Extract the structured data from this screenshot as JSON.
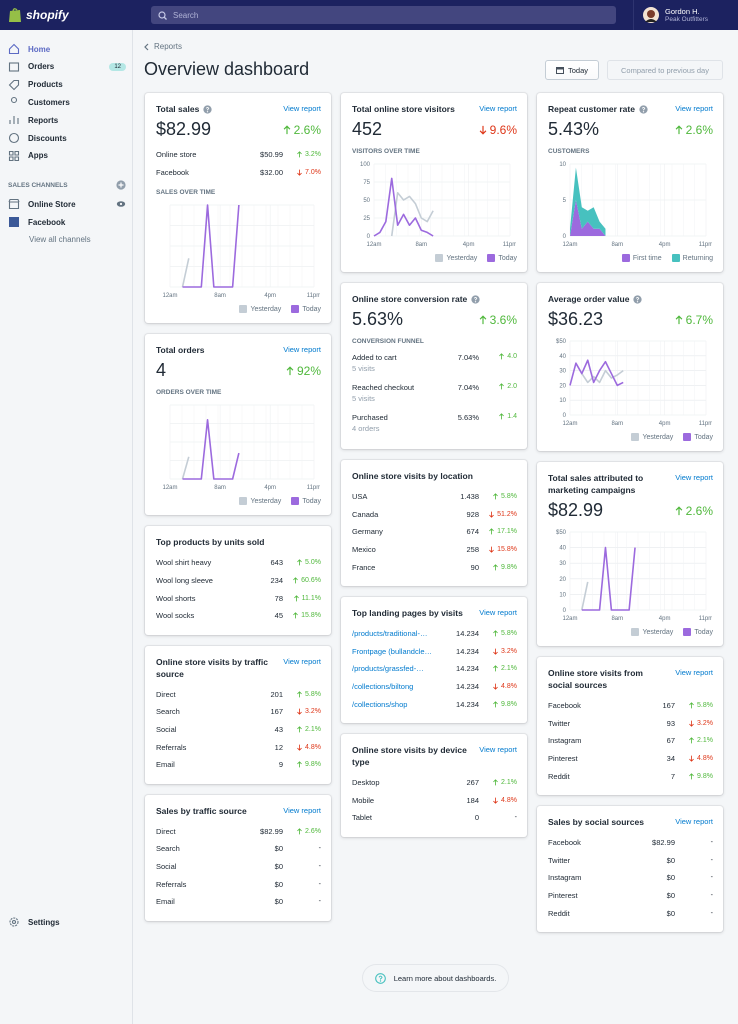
{
  "topbar": {
    "brand": "shopify",
    "search": "Search",
    "user": {
      "name": "Gordon H.",
      "store": "Peak Outfitters"
    }
  },
  "sidebar": {
    "nav": [
      {
        "label": "Home",
        "active": true
      },
      {
        "label": "Orders",
        "badge": 12
      },
      {
        "label": "Products"
      },
      {
        "label": "Customers"
      },
      {
        "label": "Reports"
      },
      {
        "label": "Discounts"
      },
      {
        "label": "Apps"
      }
    ],
    "section": "SALES CHANNELS",
    "channels": [
      "Online Store",
      "Facebook"
    ],
    "view_all": "View all channels",
    "settings": "Settings"
  },
  "header": {
    "breadcrumb": "Reports",
    "title": "Overview dashboard",
    "date_button": "Today",
    "compare_button": "Compared to previous day"
  },
  "columns": [
    [
      {
        "title": "Total sales",
        "info": true,
        "link": "View report",
        "value": "$82.99",
        "change": "2.6%",
        "trend": "up",
        "rows": [
          {
            "label": "Online store",
            "value": "$50.99",
            "change": "3.2%",
            "trend": "up"
          },
          {
            "label": "Facebook",
            "value": "$32.00",
            "change": "7.0%",
            "trend": "down"
          }
        ],
        "subheading": "SALES OVER TIME",
        "chart": {
          "type": "line",
          "x": [
            2,
            3,
            4,
            5,
            6,
            7,
            8,
            9,
            10,
            11
          ],
          "xlim": [
            0,
            23
          ],
          "xticks": [
            {
              "value": 0,
              "label": "12am"
            },
            {
              "value": 8,
              "label": "8am"
            },
            {
              "value": 16,
              "label": "4pm"
            },
            {
              "value": 23,
              "label": "11pm"
            }
          ],
          "ylim": [
            0,
            100
          ],
          "yticks": [
            0,
            25,
            50,
            75,
            100
          ],
          "ytick_labels": false,
          "series": [
            {
              "name": "Yesterday",
              "color": "#c4cdd5",
              "values": [
                0,
                35,
                null,
                null,
                null,
                null,
                null,
                null,
                null,
                null
              ]
            },
            {
              "name": "Today",
              "color": "#9c6ade",
              "values": [
                0,
                0,
                0,
                0,
                100,
                0,
                0,
                0,
                0,
                100
              ]
            }
          ]
        }
      },
      {
        "title": "Total orders",
        "link": "View report",
        "value": "4",
        "change": "92%",
        "trend": "up",
        "subheading": "ORDERS OVER TIME",
        "chart": {
          "type": "line",
          "x": [
            2,
            3,
            4,
            5,
            6,
            7,
            8,
            9,
            10,
            11
          ],
          "xlim": [
            0,
            23
          ],
          "xticks": [
            {
              "value": 0,
              "label": "12am"
            },
            {
              "value": 8,
              "label": "8am"
            },
            {
              "value": 16,
              "label": "4pm"
            },
            {
              "value": 23,
              "label": "11pm"
            }
          ],
          "ylim": [
            0,
            100
          ],
          "yticks": [
            0,
            25,
            50,
            75,
            100
          ],
          "ytick_labels": false,
          "series": [
            {
              "name": "Yesterday",
              "color": "#c4cdd5",
              "values": [
                0,
                30,
                null,
                null,
                null,
                null,
                null,
                null,
                null,
                null
              ]
            },
            {
              "name": "Today",
              "color": "#9c6ade",
              "values": [
                0,
                0,
                0,
                0,
                80,
                0,
                0,
                0,
                0,
                35
              ]
            }
          ]
        }
      },
      {
        "title": "Top products by units sold",
        "rows": [
          {
            "label": "Wool shirt heavy",
            "value": "643",
            "change": "5.0%",
            "trend": "up"
          },
          {
            "label": "Wool long sleeve",
            "value": "234",
            "change": "60.6%",
            "trend": "up"
          },
          {
            "label": "Wool shorts",
            "value": "78",
            "change": "11.1%",
            "trend": "up"
          },
          {
            "label": "Wool socks",
            "value": "45",
            "change": "15.8%",
            "trend": "up"
          }
        ]
      },
      {
        "title": "Online store visits by traffic source",
        "link": "View report",
        "rows": [
          {
            "label": "Direct",
            "value": "201",
            "change": "5.8%",
            "trend": "up"
          },
          {
            "label": "Search",
            "value": "167",
            "change": "3.2%",
            "trend": "down"
          },
          {
            "label": "Social",
            "value": "43",
            "change": "2.1%",
            "trend": "up"
          },
          {
            "label": "Referrals",
            "value": "12",
            "change": "4.8%",
            "trend": "down"
          },
          {
            "label": "Email",
            "value": "9",
            "change": "9.8%",
            "trend": "up"
          }
        ]
      },
      {
        "title": "Sales by traffic source",
        "link": "View report",
        "rows": [
          {
            "label": "Direct",
            "value": "$82.99",
            "change": "2.6%",
            "trend": "up"
          },
          {
            "label": "Search",
            "value": "$0",
            "change": "-"
          },
          {
            "label": "Social",
            "value": "$0",
            "change": "-"
          },
          {
            "label": "Referrals",
            "value": "$0",
            "change": "-"
          },
          {
            "label": "Email",
            "value": "$0",
            "change": "-"
          }
        ]
      }
    ],
    [
      {
        "title": "Total online store visitors",
        "link": "View report",
        "value": "452",
        "change": "9.6%",
        "trend": "down",
        "subheading": "VISITORS OVER TIME",
        "chart": {
          "type": "line",
          "x": [
            0,
            1,
            2,
            3,
            4,
            5,
            6,
            7,
            8,
            9,
            10
          ],
          "xlim": [
            0,
            23
          ],
          "xticks": [
            {
              "value": 0,
              "label": "12am"
            },
            {
              "value": 8,
              "label": "8am"
            },
            {
              "value": 16,
              "label": "4pm"
            },
            {
              "value": 23,
              "label": "11pm"
            }
          ],
          "ylim": [
            0,
            100
          ],
          "yticks": [
            0,
            25,
            50,
            75,
            100
          ],
          "ytick_labels": true,
          "series": [
            {
              "name": "Yesterday",
              "color": "#c4cdd5",
              "values": [
                null,
                null,
                null,
                0,
                60,
                50,
                55,
                45,
                25,
                20,
                35
              ]
            },
            {
              "name": "Today",
              "color": "#9c6ade",
              "values": [
                0,
                5,
                20,
                80,
                15,
                30,
                15,
                25,
                8,
                5,
                0
              ]
            }
          ]
        }
      },
      {
        "title": "Online store conversion rate",
        "info": true,
        "value": "5.63%",
        "change": "3.6%",
        "trend": "up",
        "subheading": "CONVERSION FUNNEL",
        "rows": [
          {
            "label": "Added to cart",
            "sub": "5 visits",
            "value": "7.04%",
            "change": "4.0",
            "trend": "up"
          },
          {
            "label": "Reached checkout",
            "sub": "5 visits",
            "value": "7.04%",
            "change": "2.0",
            "trend": "up"
          },
          {
            "label": "Purchased",
            "sub": "4 orders",
            "value": "5.63%",
            "change": "1.4",
            "trend": "up"
          }
        ]
      },
      {
        "title": "Online store visits by location",
        "rows": [
          {
            "label": "USA",
            "value": "1.438",
            "change": "5.8%",
            "trend": "up"
          },
          {
            "label": "Canada",
            "value": "928",
            "change": "51.2%",
            "trend": "down"
          },
          {
            "label": "Germany",
            "value": "674",
            "change": "17.1%",
            "trend": "up"
          },
          {
            "label": "Mexico",
            "value": "258",
            "change": "15.8%",
            "trend": "down"
          },
          {
            "label": "France",
            "value": "90",
            "change": "9.8%",
            "trend": "up"
          }
        ]
      },
      {
        "title": "Top landing pages by visits",
        "link": "View report",
        "row_links": true,
        "rows": [
          {
            "label": "/products/traditional-…",
            "value": "14.234",
            "change": "5.8%",
            "trend": "up"
          },
          {
            "label": "Frontpage (bullandcle…",
            "value": "14.234",
            "change": "3.2%",
            "trend": "down"
          },
          {
            "label": "/products/grassfed-…",
            "value": "14.234",
            "change": "2.1%",
            "trend": "up"
          },
          {
            "label": "/collections/biltong",
            "value": "14.234",
            "change": "4.8%",
            "trend": "down"
          },
          {
            "label": "/collections/shop",
            "value": "14.234",
            "change": "9.8%",
            "trend": "up"
          }
        ]
      },
      {
        "title": "Online store visits by device type",
        "link": "View report",
        "rows": [
          {
            "label": "Desktop",
            "value": "267",
            "change": "2.1%",
            "trend": "up"
          },
          {
            "label": "Mobile",
            "value": "184",
            "change": "4.8%",
            "trend": "down"
          },
          {
            "label": "Tablet",
            "value": "0",
            "change": "-"
          }
        ]
      }
    ],
    [
      {
        "title": "Repeat customer rate",
        "info": true,
        "link": "View report",
        "value": "5.43%",
        "change": "2.6%",
        "trend": "up",
        "subheading": "CUSTOMERS",
        "chart": {
          "type": "area",
          "x": [
            0,
            1,
            2,
            3,
            4,
            5,
            6
          ],
          "xlim": [
            0,
            23
          ],
          "xticks": [
            {
              "value": 0,
              "label": "12am"
            },
            {
              "value": 8,
              "label": "8am"
            },
            {
              "value": 16,
              "label": "4pm"
            },
            {
              "value": 23,
              "label": "11pm"
            }
          ],
          "ylim": [
            0,
            10
          ],
          "yticks": [
            0,
            5,
            10
          ],
          "ytick_labels": true,
          "series": [
            {
              "name": "First time",
              "color": "#9c6ade",
              "values": [
                0,
                5,
                1,
                2,
                1,
                1,
                0
              ]
            },
            {
              "name": "Returning",
              "color": "#47c1bf",
              "values": [
                1,
                4.5,
                3,
                1.5,
                3,
                1,
                1
              ]
            }
          ]
        }
      },
      {
        "title": "Average order value",
        "info": true,
        "value": "$36.23",
        "change": "6.7%",
        "trend": "up",
        "chart": {
          "type": "line",
          "x": [
            0,
            1,
            2,
            3,
            4,
            5,
            6,
            7,
            8,
            9
          ],
          "xlim": [
            0,
            23
          ],
          "xticks": [
            {
              "value": 0,
              "label": "12am"
            },
            {
              "value": 8,
              "label": "8am"
            },
            {
              "value": 16,
              "label": "4pm"
            },
            {
              "value": 23,
              "label": "11pm"
            }
          ],
          "ylim": [
            0,
            50
          ],
          "yticks": [
            0,
            10,
            20,
            30,
            40,
            {
              "value": 50,
              "label": "$50"
            }
          ],
          "ytick_labels": true,
          "series": [
            {
              "name": "Yesterday",
              "color": "#c4cdd5",
              "values": [
                null,
                null,
                28,
                22,
                26,
                22,
                30,
                25,
                27,
                30
              ]
            },
            {
              "name": "Today",
              "color": "#9c6ade",
              "values": [
                20,
                35,
                28,
                37,
                22,
                30,
                36,
                28,
                20,
                22
              ]
            }
          ]
        }
      },
      {
        "title": "Total sales attributed to marketing campaigns",
        "link": "View report",
        "value": "$82.99",
        "change": "2.6%",
        "trend": "up",
        "chart": {
          "type": "line",
          "x": [
            2,
            3,
            4,
            5,
            6,
            7,
            8,
            9,
            10,
            11
          ],
          "xlim": [
            0,
            23
          ],
          "xticks": [
            {
              "value": 0,
              "label": "12am"
            },
            {
              "value": 8,
              "label": "8am"
            },
            {
              "value": 16,
              "label": "4pm"
            },
            {
              "value": 23,
              "label": "11pm"
            }
          ],
          "ylim": [
            0,
            50
          ],
          "yticks": [
            0,
            10,
            20,
            30,
            40,
            {
              "value": 50,
              "label": "$50"
            }
          ],
          "ytick_labels": true,
          "series": [
            {
              "name": "Yesterday",
              "color": "#c4cdd5",
              "values": [
                0,
                18,
                null,
                null,
                null,
                null,
                null,
                null,
                null,
                null
              ]
            },
            {
              "name": "Today",
              "color": "#9c6ade",
              "values": [
                0,
                0,
                0,
                0,
                40,
                0,
                0,
                0,
                0,
                40
              ]
            }
          ]
        }
      },
      {
        "title": "Online store visits from social sources",
        "link": "View report",
        "rows": [
          {
            "label": "Facebook",
            "value": "167",
            "change": "5.8%",
            "trend": "up"
          },
          {
            "label": "Twitter",
            "value": "93",
            "change": "3.2%",
            "trend": "down"
          },
          {
            "label": "Instagram",
            "value": "67",
            "change": "2.1%",
            "trend": "up"
          },
          {
            "label": "Pinterest",
            "value": "34",
            "change": "4.8%",
            "trend": "down"
          },
          {
            "label": "Reddit",
            "value": "7",
            "change": "9.8%",
            "trend": "up"
          }
        ]
      },
      {
        "title": "Sales by social sources",
        "link": "View report",
        "rows": [
          {
            "label": "Facebook",
            "value": "$82.99",
            "change": "-"
          },
          {
            "label": "Twitter",
            "value": "$0",
            "change": "-"
          },
          {
            "label": "Instagram",
            "value": "$0",
            "change": "-"
          },
          {
            "label": "Pinterest",
            "value": "$0",
            "change": "-"
          },
          {
            "label": "Reddit",
            "value": "$0",
            "change": "-"
          }
        ]
      }
    ]
  ],
  "footer": "Learn more about dashboards."
}
